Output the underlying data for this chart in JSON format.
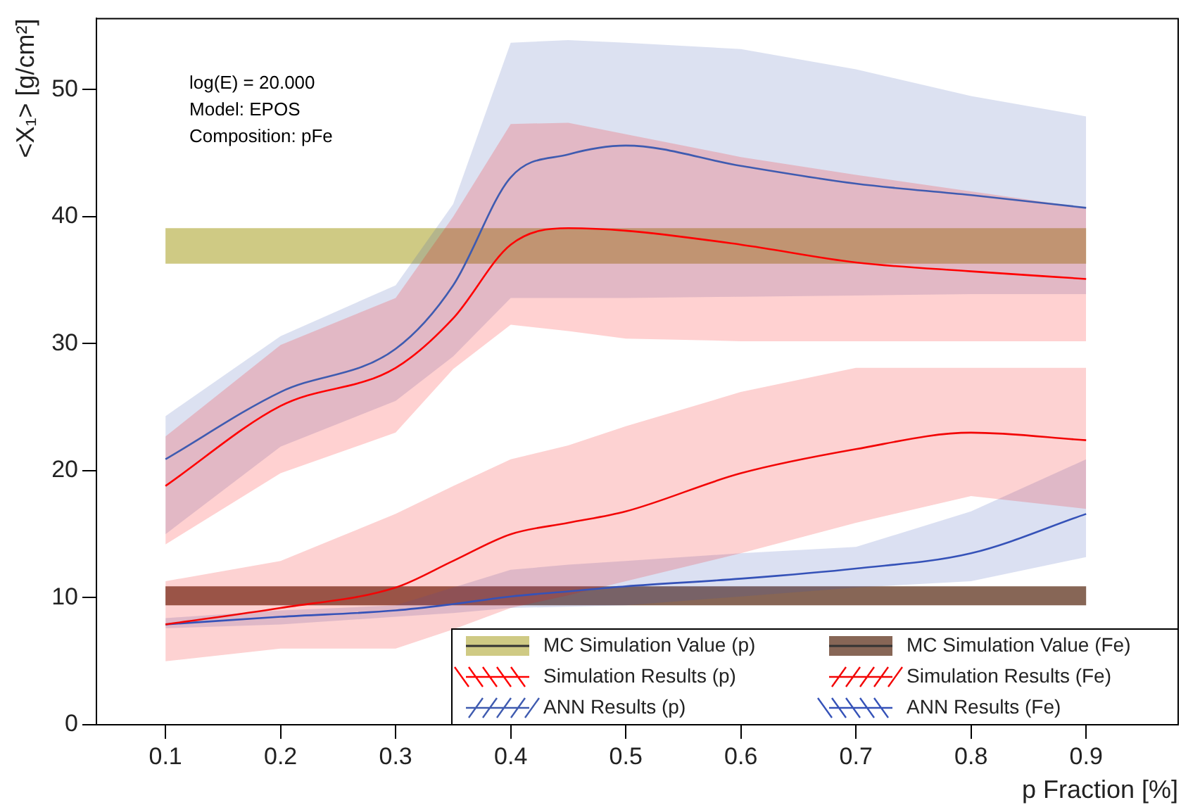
{
  "chart_data": {
    "type": "line",
    "xlabel": "p Fraction [%]",
    "ylabel": "<X₁> [g/cm²]",
    "x": [
      0.1,
      0.2,
      0.3,
      0.35,
      0.4,
      0.45,
      0.5,
      0.6,
      0.7,
      0.8,
      0.9
    ],
    "xlim": [
      0.04,
      0.98
    ],
    "xticks": [
      0.1,
      0.2,
      0.3,
      0.4,
      0.5,
      0.6,
      0.7,
      0.8,
      0.9
    ],
    "ylim": [
      0,
      55.6
    ],
    "yticks": [
      0,
      10,
      20,
      30,
      40,
      50
    ],
    "grid": false,
    "legend": "bottom right",
    "annotations": [
      "log(E) = 20.000",
      "Model: EPOS",
      "Composition: pFe"
    ],
    "bands": [
      {
        "axis": "y",
        "from": 36.3,
        "to": 39.1,
        "label": "MC Simulation Value (p)",
        "color": "#cfca84"
      },
      {
        "axis": "y",
        "from": 9.4,
        "to": 10.9,
        "label": "MC Simulation Value (Fe)",
        "color": "#876656"
      }
    ],
    "series": [
      {
        "name": "Simulation Results (p)",
        "color": "#ff0000",
        "values": [
          18.8,
          25.1,
          28.1,
          32,
          37.8,
          39.1,
          38.9,
          37.8,
          36.4,
          35.7,
          35.1
        ],
        "lower": [
          14.2,
          19.8,
          23,
          28,
          31.5,
          31,
          30.4,
          30.2,
          30.2,
          30.2,
          30.2
        ],
        "upper": [
          22.7,
          29.9,
          33.6,
          40,
          47.3,
          47.4,
          46.5,
          44.7,
          43.3,
          42,
          40.7
        ]
      },
      {
        "name": "ANN Results (p)",
        "color": "#3f5bb0",
        "values": [
          20.9,
          26.2,
          29.6,
          34.6,
          43.1,
          44.9,
          45.6,
          44,
          42.6,
          41.7,
          40.7
        ],
        "lower": [
          15,
          21.9,
          25.5,
          29,
          33.6,
          33.6,
          33.6,
          33.7,
          33.8,
          33.9,
          33.9
        ],
        "upper": [
          24.3,
          30.6,
          34.6,
          41,
          53.7,
          53.9,
          53.7,
          53.2,
          51.6,
          49.5,
          47.9
        ]
      },
      {
        "name": "Simulation Results (Fe)",
        "color": "#f20505",
        "values": [
          7.9,
          9.2,
          10.8,
          12.9,
          15,
          15.9,
          16.8,
          19.8,
          21.7,
          23,
          22.4
        ],
        "lower": [
          5,
          6,
          6,
          7.5,
          9.2,
          10.2,
          11.3,
          13.5,
          15.9,
          18,
          17
        ],
        "upper": [
          11.3,
          12.9,
          16.6,
          18.8,
          20.9,
          22,
          23.5,
          26.2,
          28.1,
          28.1,
          28.1
        ]
      },
      {
        "name": "ANN Results (Fe)",
        "color": "#3552b8",
        "values": [
          7.9,
          8.5,
          9,
          9.5,
          10.1,
          10.5,
          10.9,
          11.5,
          12.3,
          13.5,
          16.6
        ],
        "lower": [
          7.6,
          7.9,
          8.5,
          8.8,
          9.2,
          9.3,
          9.4,
          10.1,
          10.8,
          11.3,
          13.2
        ],
        "upper": [
          8.4,
          9,
          9.4,
          10.8,
          12.2,
          12.6,
          12.9,
          13.5,
          14,
          16.8,
          20.9
        ]
      }
    ]
  }
}
